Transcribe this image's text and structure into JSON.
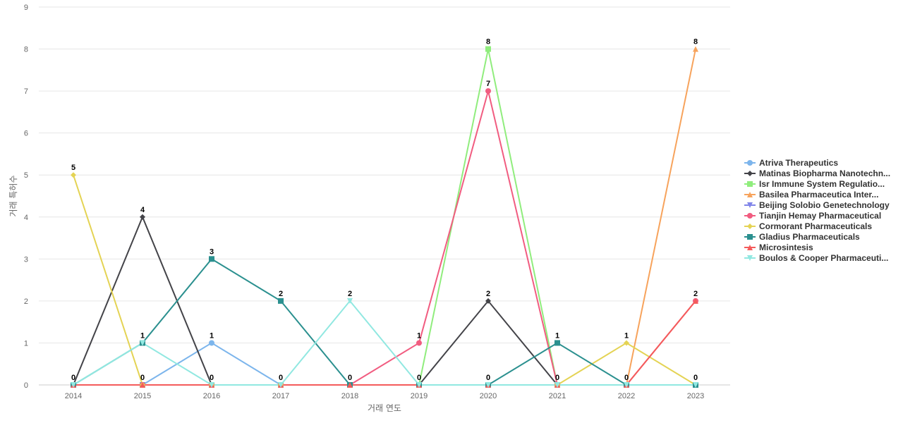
{
  "chart_data": {
    "type": "line",
    "title": "",
    "xlabel": "거래 연도",
    "ylabel": "거래 특허수",
    "ylim": [
      0,
      9
    ],
    "yticks": [
      0,
      1,
      2,
      3,
      4,
      5,
      6,
      7,
      8,
      9
    ],
    "grid": true,
    "legend_position": "right",
    "categories": [
      "2014",
      "2015",
      "2016",
      "2017",
      "2018",
      "2019",
      "2020",
      "2021",
      "2022",
      "2023"
    ],
    "series": [
      {
        "name": "Atriva Therapeutics",
        "color": "#7cb5ec",
        "marker": "circle",
        "values": [
          0,
          0,
          1,
          0,
          0,
          0,
          0,
          0,
          0,
          0
        ]
      },
      {
        "name": "Matinas Biopharma Nanotechn...",
        "color": "#434348",
        "marker": "diamond",
        "values": [
          0,
          4,
          0,
          0,
          0,
          0,
          2,
          0,
          0,
          0
        ]
      },
      {
        "name": "Isr Immune System Regulatio...",
        "color": "#90ed7d",
        "marker": "square",
        "values": [
          0,
          0,
          0,
          0,
          0,
          0,
          8,
          0,
          0,
          0
        ]
      },
      {
        "name": "Basilea Pharmaceutica Inter...",
        "color": "#f7a35c",
        "marker": "triangle",
        "values": [
          0,
          0,
          0,
          0,
          0,
          0,
          0,
          0,
          0,
          8
        ]
      },
      {
        "name": "Beijing Solobio Genetechnology",
        "color": "#8085e9",
        "marker": "triangle-down",
        "values": [
          0,
          0,
          0,
          0,
          0,
          0,
          0,
          0,
          0,
          0
        ]
      },
      {
        "name": "Tianjin Hemay Pharmaceutical",
        "color": "#f15c80",
        "marker": "circle",
        "values": [
          0,
          0,
          0,
          0,
          0,
          1,
          7,
          0,
          0,
          2
        ]
      },
      {
        "name": "Cormorant Pharmaceuticals",
        "color": "#e4d354",
        "marker": "diamond",
        "values": [
          5,
          0,
          0,
          0,
          0,
          0,
          0,
          0,
          1,
          0
        ]
      },
      {
        "name": "Gladius Pharmaceuticals",
        "color": "#2b908f",
        "marker": "square",
        "values": [
          0,
          1,
          3,
          2,
          0,
          0,
          0,
          1,
          0,
          0
        ]
      },
      {
        "name": "Microsintesis",
        "color": "#f45b5b",
        "marker": "triangle",
        "values": [
          0,
          0,
          0,
          0,
          0,
          0,
          0,
          0,
          0,
          2
        ]
      },
      {
        "name": "Boulos & Cooper Pharmaceuti...",
        "color": "#91e8e1",
        "marker": "triangle-down",
        "values": [
          0,
          1,
          0,
          0,
          2,
          0,
          0,
          0,
          0,
          0
        ]
      }
    ],
    "data_labels": [
      {
        "category": "2014",
        "values": [
          "0",
          "5"
        ]
      },
      {
        "category": "2015",
        "values": [
          "1",
          "4",
          "0"
        ]
      },
      {
        "category": "2016",
        "values": [
          "3",
          "1",
          "0"
        ]
      },
      {
        "category": "2017",
        "values": [
          "2",
          "0"
        ]
      },
      {
        "category": "2018",
        "values": [
          "2",
          "0"
        ]
      },
      {
        "category": "2019",
        "values": [
          "1",
          "0"
        ]
      },
      {
        "category": "2020",
        "values": [
          "8",
          "7",
          "2",
          "0"
        ]
      },
      {
        "category": "2021",
        "values": [
          "1",
          "0"
        ]
      },
      {
        "category": "2022",
        "values": [
          "1",
          "0"
        ]
      },
      {
        "category": "2023",
        "values": [
          "8",
          "2",
          "0"
        ]
      }
    ]
  }
}
